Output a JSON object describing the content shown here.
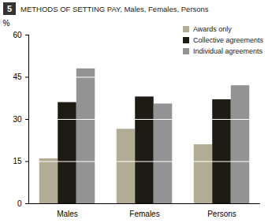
{
  "chart_data": {
    "type": "bar",
    "number": "5",
    "title": "METHODS OF SETTING PAY, Males, Females, Persons",
    "y_label": "%",
    "categories": [
      "Males",
      "Females",
      "Persons"
    ],
    "series": [
      {
        "name": "Awards only",
        "color": "#b2ac94",
        "values": [
          16,
          26.5,
          21
        ]
      },
      {
        "name": "Collective agreements",
        "color": "#1e1a14",
        "values": [
          36,
          38,
          37
        ]
      },
      {
        "name": "Individual agreements",
        "color": "#939393",
        "values": [
          48,
          35.5,
          42
        ]
      }
    ],
    "ylim": [
      0,
      60
    ],
    "yticks": [
      0,
      15,
      30,
      45,
      60
    ],
    "grid": true,
    "legend": "top-right"
  }
}
